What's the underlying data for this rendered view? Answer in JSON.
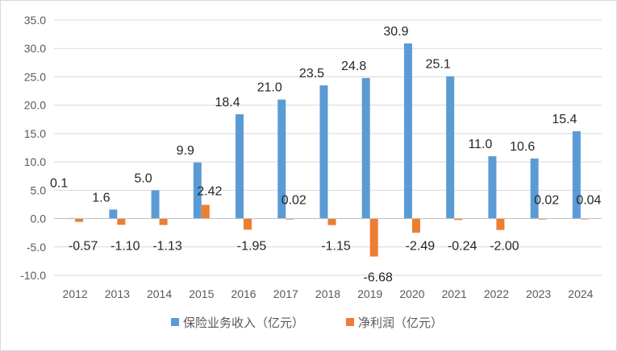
{
  "chart_data": {
    "type": "bar",
    "categories": [
      "2012",
      "2013",
      "2014",
      "2015",
      "2016",
      "2017",
      "2018",
      "2019",
      "2020",
      "2021",
      "2022",
      "2023",
      "2024"
    ],
    "series": [
      {
        "name": "保险业务收入（亿元）",
        "color": "#5b9bd5",
        "values": [
          0.1,
          1.6,
          5.0,
          9.9,
          18.4,
          21.0,
          23.5,
          24.8,
          30.9,
          25.1,
          11.0,
          10.6,
          15.4
        ],
        "labels": [
          "0.1",
          "1.6",
          "5.0",
          "9.9",
          "18.4",
          "21.0",
          "23.5",
          "24.8",
          "30.9",
          "25.1",
          "11.0",
          "10.6",
          "15.4"
        ]
      },
      {
        "name": "净利润（亿元）",
        "color": "#ed7d31",
        "values": [
          -0.57,
          -1.1,
          -1.13,
          2.42,
          -1.95,
          0.02,
          -1.15,
          -6.68,
          -2.49,
          -0.24,
          -2.0,
          0.02,
          0.04
        ],
        "labels": [
          "-0.57",
          "-1.10",
          "-1.13",
          "2.42",
          "-1.95",
          "0.02",
          "-1.15",
          "-6.68",
          "-2.49",
          "-0.24",
          "-2.00",
          "0.02",
          "0.04"
        ]
      }
    ],
    "ylim": [
      -10,
      35
    ],
    "yticks": [
      "-10.0",
      "-5.0",
      "0.0",
      "5.0",
      "10.0",
      "15.0",
      "20.0",
      "25.0",
      "30.0",
      "35.0"
    ],
    "grid": true,
    "legend": "bottom",
    "gridColor": "#d9d9d9",
    "title": "",
    "xlabel": "",
    "ylabel": ""
  }
}
